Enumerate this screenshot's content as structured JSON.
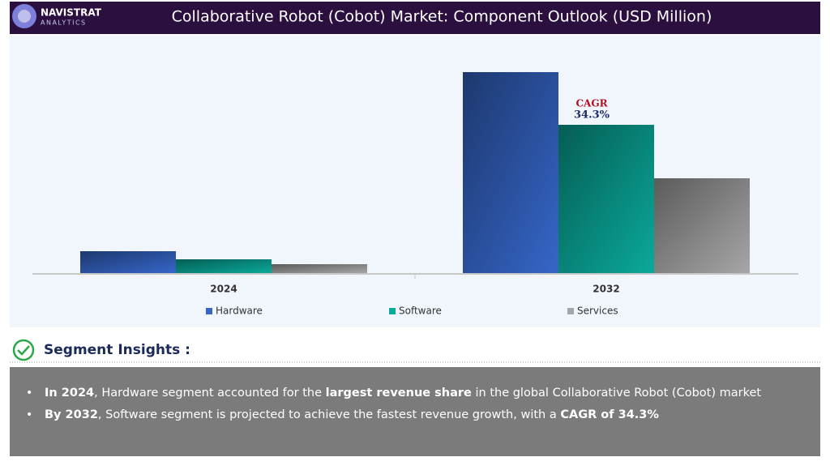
{
  "header": {
    "brand": "NAVISTRAT",
    "brand_sub": "ANALYTICS"
  },
  "chart_data": {
    "type": "bar",
    "title": "Collaborative Robot (Cobot) Market: Component Outlook (USD Million)",
    "categories": [
      "2024",
      "2032"
    ],
    "series": [
      {
        "name": "Hardware",
        "color": "#3566c8",
        "values": [
          27,
          248
        ]
      },
      {
        "name": "Software",
        "color": "#0aa99a",
        "values": [
          17,
          183
        ]
      },
      {
        "name": "Services",
        "color": "#a6a6a6",
        "values": [
          11,
          117
        ]
      }
    ],
    "annotation": {
      "label": "CAGR",
      "value": "34.3%"
    },
    "legend": "bottom"
  },
  "insights": {
    "title": "Segment Insights :",
    "bullets": [
      [
        {
          "text": "In 2024",
          "bold": true
        },
        {
          "text": ", Hardware segment accounted for the ",
          "bold": false
        },
        {
          "text": "largest revenue share",
          "bold": true
        },
        {
          "text": " in the global Collaborative Robot (Cobot) market",
          "bold": false
        }
      ],
      [
        {
          "text": "By 2032",
          "bold": true
        },
        {
          "text": ", Software segment is projected to achieve the fastest revenue growth, with a ",
          "bold": false
        },
        {
          "text": "CAGR of 34.3%",
          "bold": true
        }
      ]
    ]
  }
}
